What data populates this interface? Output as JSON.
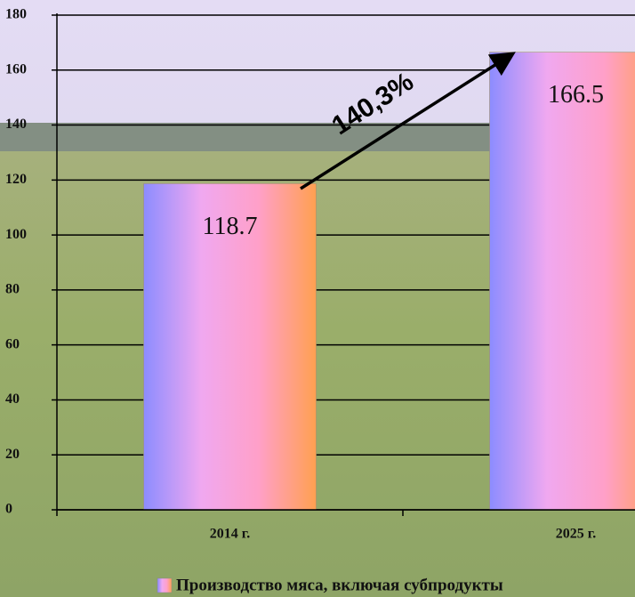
{
  "chart_data": {
    "type": "bar",
    "categories": [
      "2014 г.",
      "2025 г."
    ],
    "series": [
      {
        "name": "Производство мяса, включая субпродукты",
        "gradient": [
          "#8c8cff",
          "#f0a8f0",
          "#ffa0c8",
          "#ffa050"
        ],
        "values": [
          118.7,
          166.5
        ]
      }
    ],
    "ylim": [
      0,
      180
    ],
    "yticks": [
      0,
      20,
      40,
      60,
      80,
      100,
      120,
      140,
      160,
      180
    ],
    "grid": true,
    "annotation": "140,3%"
  }
}
